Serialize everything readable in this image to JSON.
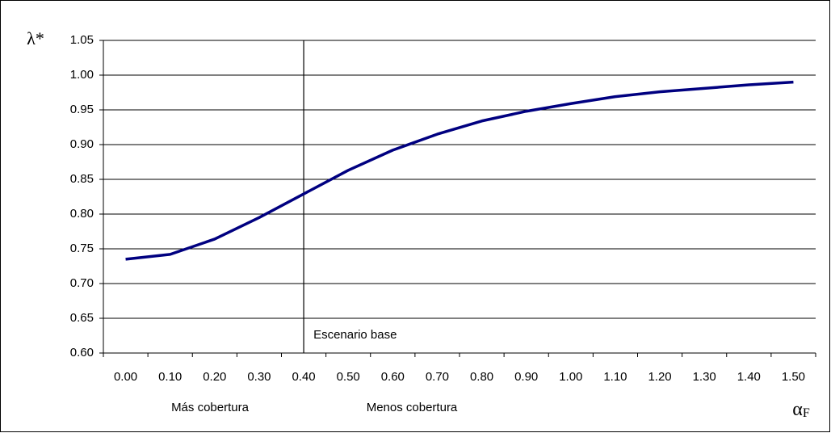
{
  "chart_data": {
    "type": "line",
    "y_label": "λ*",
    "x_label": {
      "symbol": "α",
      "subscript": "F"
    },
    "categories": [
      "0.00",
      "0.10",
      "0.20",
      "0.30",
      "0.40",
      "0.50",
      "0.60",
      "0.70",
      "0.80",
      "0.90",
      "1.00",
      "1.10",
      "1.20",
      "1.30",
      "1.40",
      "1.50"
    ],
    "series": [
      {
        "color": "#000080",
        "values": [
          0.735,
          0.742,
          0.764,
          0.795,
          0.829,
          0.863,
          0.892,
          0.915,
          0.934,
          0.948,
          0.959,
          0.969,
          0.976,
          0.981,
          0.986,
          0.99
        ]
      }
    ],
    "ylim": [
      0.6,
      1.05
    ],
    "yticks": [
      {
        "value": 0.6,
        "label": "0.60"
      },
      {
        "value": 0.65,
        "label": "0.65"
      },
      {
        "value": 0.7,
        "label": "0.70"
      },
      {
        "value": 0.75,
        "label": "0.75"
      },
      {
        "value": 0.8,
        "label": "0.80"
      },
      {
        "value": 0.85,
        "label": "0.85"
      },
      {
        "value": 0.9,
        "label": "0.90"
      },
      {
        "value": 0.95,
        "label": "0.95"
      },
      {
        "value": 1.0,
        "label": "1.00"
      },
      {
        "value": 1.05,
        "label": "1.05"
      }
    ],
    "grid": true,
    "reference_line": {
      "category": "0.40",
      "label": "Escenario base"
    },
    "region_labels": [
      "Más cobertura",
      "Menos cobertura"
    ]
  }
}
